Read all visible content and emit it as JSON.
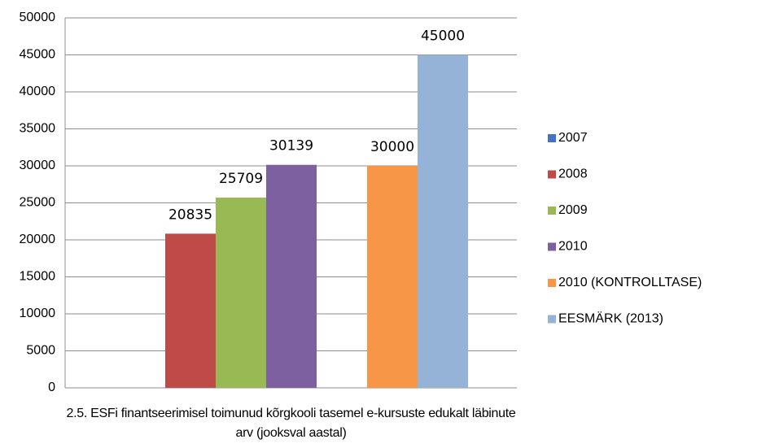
{
  "chart_data": {
    "type": "bar",
    "categories": [
      "2.5. ESFi finantseerimisel toimunud kõrgkooli tasemel e-kursuste edukalt läbinute arv (jooksval aastal)"
    ],
    "series": [
      {
        "name": "2007",
        "color": "#4472c4",
        "values": [
          null
        ]
      },
      {
        "name": "2008",
        "color": "#be4b48",
        "values": [
          20835
        ]
      },
      {
        "name": "2009",
        "color": "#98b954",
        "values": [
          25709
        ]
      },
      {
        "name": "2010",
        "color": "#7d60a0",
        "values": [
          30139
        ]
      },
      {
        "name": "2010 (KONTROLLTASE)",
        "color": "#f79646",
        "values": [
          30000
        ]
      },
      {
        "name": "EESMÄRK (2013)",
        "color": "#95b3d7",
        "values": [
          45000
        ]
      }
    ],
    "ylim": [
      0,
      50000
    ],
    "yticks": [
      0,
      5000,
      10000,
      15000,
      20000,
      25000,
      30000,
      35000,
      40000,
      45000,
      50000
    ],
    "grid": true,
    "legend": "right"
  }
}
